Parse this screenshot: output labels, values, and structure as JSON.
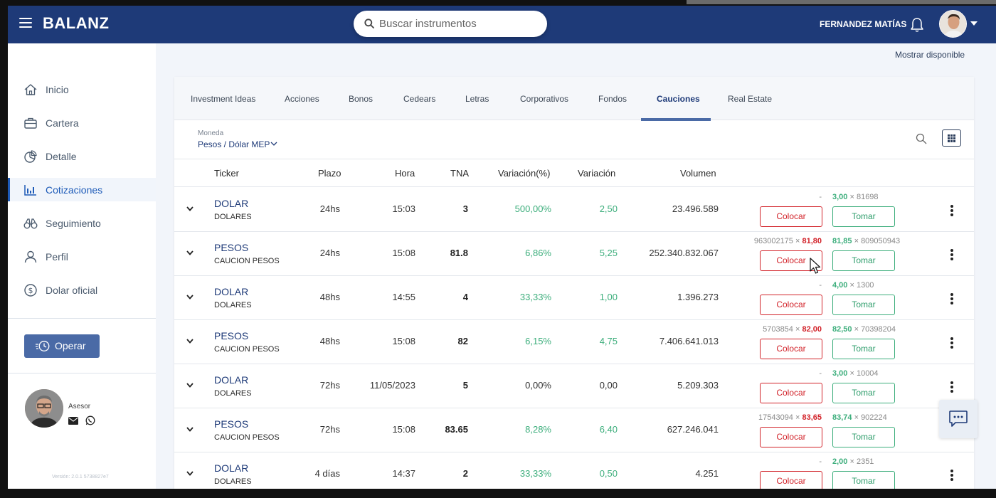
{
  "header": {
    "brand": "BALANZ",
    "search_placeholder": "Buscar instrumentos",
    "user_name": "FERNANDEZ MATÍAS"
  },
  "sidebar": {
    "items": [
      {
        "label": "Inicio",
        "icon": "home-icon",
        "active": false
      },
      {
        "label": "Cartera",
        "icon": "briefcase-icon",
        "active": false
      },
      {
        "label": "Detalle",
        "icon": "pie-chart-icon",
        "active": false
      },
      {
        "label": "Cotizaciones",
        "icon": "bar-chart-icon",
        "active": true
      },
      {
        "label": "Seguimiento",
        "icon": "binoculars-icon",
        "active": false
      },
      {
        "label": "Perfil",
        "icon": "user-icon",
        "active": false
      },
      {
        "label": "Dolar oficial",
        "icon": "dollar-circle-icon",
        "active": false
      }
    ],
    "operate_label": "Operar",
    "advisor_label": "Asesor",
    "version": "Versión: 2.0.1 5738827e7"
  },
  "content": {
    "show_available": "Mostrar disponible",
    "tabs": [
      {
        "label": "Investment Ideas",
        "active": false
      },
      {
        "label": "Acciones",
        "active": false
      },
      {
        "label": "Bonos",
        "active": false
      },
      {
        "label": "Cedears",
        "active": false
      },
      {
        "label": "Letras",
        "active": false
      },
      {
        "label": "Corporativos",
        "active": false
      },
      {
        "label": "Fondos",
        "active": false
      },
      {
        "label": "Cauciones",
        "active": true
      },
      {
        "label": "Real Estate",
        "active": false
      }
    ],
    "currency_label": "Moneda",
    "currency_value": "Pesos / Dólar MEP",
    "columns": {
      "ticker": "Ticker",
      "plazo": "Plazo",
      "hora": "Hora",
      "tna": "TNA",
      "var_pct": "Variación(%)",
      "var": "Variación",
      "volumen": "Volumen"
    },
    "place_label": "Colocar",
    "take_label": "Tomar",
    "rows": [
      {
        "ticker": "DOLAR",
        "sub": "DOLARES",
        "plazo": "24hs",
        "hora": "15:03",
        "tna": "3",
        "var_pct": "500,00%",
        "var": "2,50",
        "volumen": "23.496.589",
        "bid_qty": "",
        "bid_px": "",
        "bid_empty": "-",
        "ask_px": "3,00",
        "ask_qty": " × 81698"
      },
      {
        "ticker": "PESOS",
        "sub": "CAUCION PESOS",
        "plazo": "24hs",
        "hora": "15:08",
        "tna": "81.8",
        "var_pct": "6,86%",
        "var": "5,25",
        "volumen": "252.340.832.067",
        "bid_qty": "963002175 × ",
        "bid_px": "81,80",
        "bid_empty": "",
        "ask_px": "81,85",
        "ask_qty": " × 809050943"
      },
      {
        "ticker": "DOLAR",
        "sub": "DOLARES",
        "plazo": "48hs",
        "hora": "14:55",
        "tna": "4",
        "var_pct": "33,33%",
        "var": "1,00",
        "volumen": "1.396.273",
        "bid_qty": "",
        "bid_px": "",
        "bid_empty": "-",
        "ask_px": "4,00",
        "ask_qty": " × 1300"
      },
      {
        "ticker": "PESOS",
        "sub": "CAUCION PESOS",
        "plazo": "48hs",
        "hora": "15:08",
        "tna": "82",
        "var_pct": "6,15%",
        "var": "4,75",
        "volumen": "7.406.641.013",
        "bid_qty": "5703854 × ",
        "bid_px": "82,00",
        "bid_empty": "",
        "ask_px": "82,50",
        "ask_qty": " × 70398204"
      },
      {
        "ticker": "DOLAR",
        "sub": "DOLARES",
        "plazo": "72hs",
        "hora": "11/05/2023",
        "tna": "5",
        "var_pct": "0,00%",
        "var": "0,00",
        "volumen": "5.209.303",
        "bid_qty": "",
        "bid_px": "",
        "bid_empty": "-",
        "ask_px": "3,00",
        "ask_qty": " × 10004"
      },
      {
        "ticker": "PESOS",
        "sub": "CAUCION PESOS",
        "plazo": "72hs",
        "hora": "15:08",
        "tna": "83.65",
        "var_pct": "8,28%",
        "var": "6,40",
        "volumen": "627.246.041",
        "bid_qty": "17543094 × ",
        "bid_px": "83,65",
        "bid_empty": "",
        "ask_px": "83,74",
        "ask_qty": " × 902224"
      },
      {
        "ticker": "DOLAR",
        "sub": "DOLARES",
        "plazo": "4 días",
        "hora": "14:37",
        "tna": "2",
        "var_pct": "33,33%",
        "var": "0,50",
        "volumen": "4.251",
        "bid_qty": "",
        "bid_px": "",
        "bid_empty": "-",
        "ask_px": "2,00",
        "ask_qty": " × 2351"
      }
    ]
  },
  "colors": {
    "brand": "#1e3a78",
    "bid": "#d2232a",
    "ask": "#3dae7c"
  }
}
